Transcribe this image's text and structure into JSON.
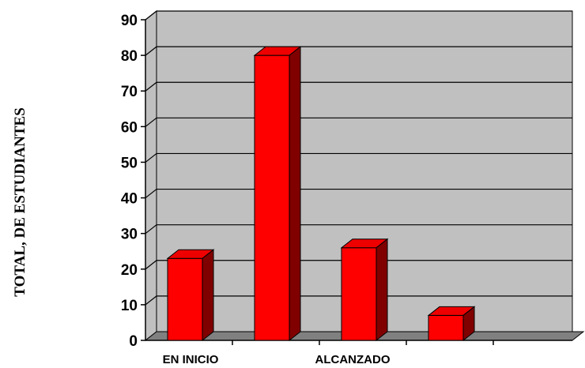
{
  "chart_data": {
    "type": "bar",
    "three_d": true,
    "ylabel": "TOTAL, DE ESTUDIANTES",
    "xlabel": "",
    "ylim": [
      0,
      90
    ],
    "yticks": [
      0,
      10,
      20,
      30,
      40,
      50,
      60,
      70,
      80,
      90
    ],
    "category_labels_shown": [
      "EN INICIO",
      "ALCANZADO"
    ],
    "values": [
      23,
      80,
      26,
      7
    ],
    "grid": true,
    "legend": "none",
    "colors": {
      "bar_front": "#ff0000",
      "bar_top": "#ee0000",
      "bar_side": "#800000",
      "wall": "#c0c0c0",
      "floor": "#808080",
      "gridline": "#000000"
    }
  }
}
